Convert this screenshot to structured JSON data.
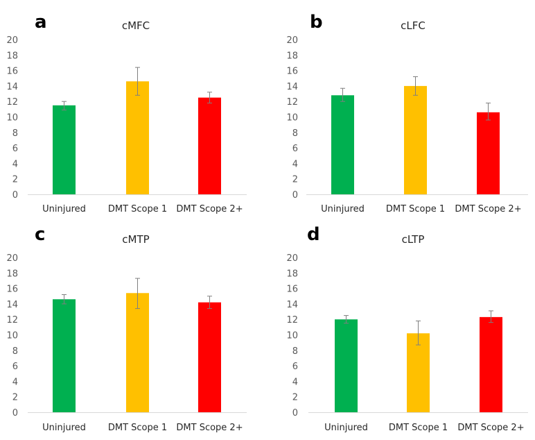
{
  "figure": {
    "background": "#ffffff",
    "error_bar_color": "#7f7f7f",
    "axis_color": "#d9d9d9"
  },
  "chart_data": [
    {
      "type": "bar",
      "panel_letter": "a",
      "title": "cMFC",
      "categories": [
        "Uninjured",
        "DMT Scope 1",
        "DMT Scope 2+"
      ],
      "colors": [
        "#00B050",
        "#FFC000",
        "#FF0000"
      ],
      "values": [
        11.5,
        14.6,
        12.5
      ],
      "error_upper": [
        12.0,
        16.4,
        13.2
      ],
      "error_lower": [
        10.9,
        12.8,
        11.8
      ],
      "yticks": [
        "0",
        "2",
        "4",
        "6",
        "8",
        "10",
        "12",
        "14",
        "16",
        "18",
        "20"
      ],
      "ylim": [
        0,
        20
      ],
      "xlabel": "",
      "ylabel": "",
      "grid": false,
      "legend": "none"
    },
    {
      "type": "bar",
      "panel_letter": "b",
      "title": "cLFC",
      "categories": [
        "Uninjured",
        "DMT Scope 1",
        "DMT Scope 2+"
      ],
      "colors": [
        "#00B050",
        "#FFC000",
        "#FF0000"
      ],
      "values": [
        12.8,
        14.0,
        10.6
      ],
      "error_upper": [
        13.7,
        15.2,
        11.8
      ],
      "error_lower": [
        12.0,
        12.8,
        9.6
      ],
      "yticks": [
        "0",
        "2",
        "4",
        "6",
        "8",
        "10",
        "12",
        "14",
        "16",
        "18",
        "20"
      ],
      "ylim": [
        0,
        20
      ],
      "xlabel": "",
      "ylabel": "",
      "grid": false,
      "legend": "none"
    },
    {
      "type": "bar",
      "panel_letter": "c",
      "title": "cMTP",
      "categories": [
        "Uninjured",
        "DMT Scope 1",
        "DMT Scope 2+"
      ],
      "colors": [
        "#00B050",
        "#FFC000",
        "#FF0000"
      ],
      "values": [
        14.6,
        15.4,
        14.2
      ],
      "error_upper": [
        15.2,
        17.3,
        15.0
      ],
      "error_lower": [
        14.0,
        13.4,
        13.4
      ],
      "yticks": [
        "0",
        "2",
        "4",
        "6",
        "8",
        "10",
        "12",
        "14",
        "16",
        "18",
        "20"
      ],
      "ylim": [
        0,
        20
      ],
      "xlabel": "",
      "ylabel": "",
      "grid": false,
      "legend": "none"
    },
    {
      "type": "bar",
      "panel_letter": "d",
      "title": "cLTP",
      "categories": [
        "Uninjured",
        "DMT Scope 1",
        "DMT Scope 2+"
      ],
      "colors": [
        "#00B050",
        "#FFC000",
        "#FF0000"
      ],
      "values": [
        12.0,
        10.2,
        12.3
      ],
      "error_upper": [
        12.5,
        11.8,
        13.1
      ],
      "error_lower": [
        11.5,
        8.7,
        11.6
      ],
      "yticks": [
        "0",
        "2",
        "4",
        "6",
        "8",
        "10",
        "12",
        "14",
        "16",
        "18",
        "20"
      ],
      "ylim": [
        0,
        20
      ],
      "xlabel": "",
      "ylabel": "",
      "grid": false,
      "legend": "none"
    }
  ]
}
